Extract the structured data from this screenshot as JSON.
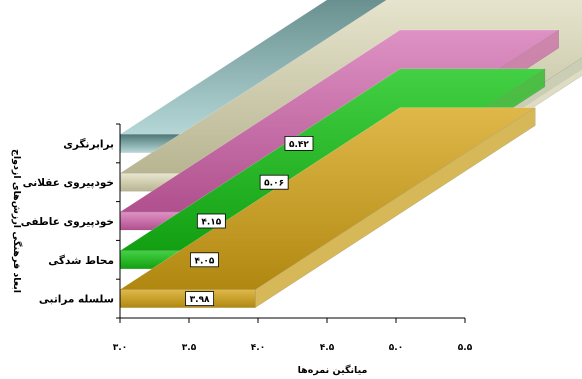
{
  "chart_data": {
    "type": "bar",
    "orientation": "horizontal",
    "style": "3d",
    "xlabel": "میانگین نمره‌ها",
    "ylabel": "ابعاد فرهنگی ارزش‌های ازدواج",
    "xlim": [
      3.0,
      5.5
    ],
    "xticks": [
      3.0,
      3.5,
      4.0,
      4.5,
      5.0,
      5.5
    ],
    "xtick_labels": [
      "۳.۰",
      "۳.۵",
      "۴.۰",
      "۴.۵",
      "۵.۰",
      "۵.۵"
    ],
    "categories": [
      "سلسله مراتبی",
      "محاط شدگی",
      "خودپیروی عاطفی",
      "خودپیروی عقلانی",
      "برابرنگری"
    ],
    "values": [
      3.98,
      4.05,
      4.15,
      5.06,
      5.42
    ],
    "data_labels": [
      "۳.۹۸",
      "۴.۰۵",
      "۴.۱۵",
      "۵.۰۶",
      "۵.۴۲"
    ],
    "colors": [
      "#C8A020",
      "#22B822",
      "#C869A5",
      "#D3D0AE",
      "#8FB4B4"
    ],
    "grid": false,
    "legend": "none"
  }
}
